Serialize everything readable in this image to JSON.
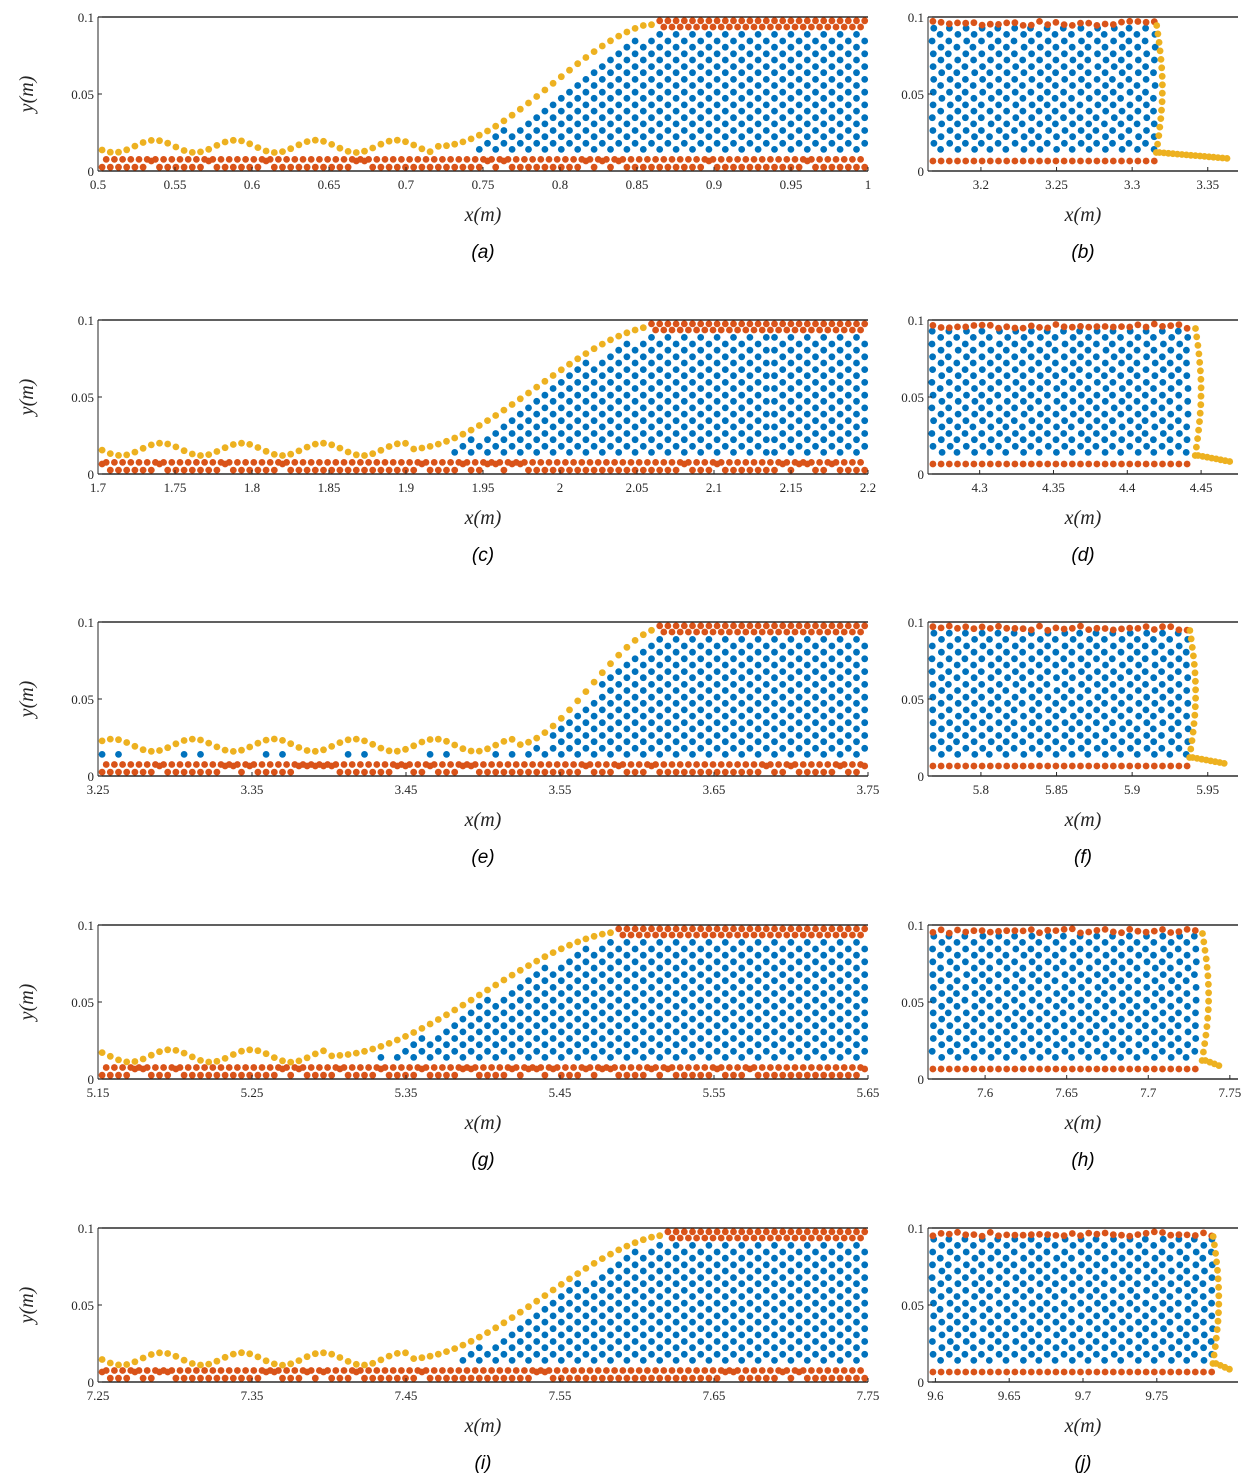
{
  "chart_data": [
    {
      "type": "scatter",
      "caption": "(a)",
      "xlabel": "x(m)",
      "ylabel": "y(m)",
      "xlim": [
        0.5,
        1.0
      ],
      "ylim": [
        0,
        0.1
      ],
      "xticks": [
        "0.5",
        "0.55",
        "0.6",
        "0.65",
        "0.7",
        "0.75",
        "0.8",
        "0.85",
        "0.9",
        "0.95",
        "1"
      ],
      "yticks": [
        "0",
        "0.05",
        "0.1"
      ],
      "front": {
        "kind": "slope",
        "tail_h": 0.016,
        "x0": 0.72,
        "x1": 0.87
      },
      "colors": {
        "fluid": "#0072BD",
        "wall": "#D95319",
        "free_surface": "#EDB120"
      }
    },
    {
      "type": "scatter",
      "caption": "(b)",
      "xlabel": "x(m)",
      "ylabel": "",
      "xlim": [
        3.165,
        3.37
      ],
      "ylim": [
        0,
        0.1
      ],
      "xticks": [
        "3.2",
        "3.25",
        "3.3",
        "3.35"
      ],
      "yticks": [
        "0",
        "0.05",
        "0.1"
      ],
      "front": {
        "kind": "wall",
        "front_x": 3.318,
        "tail_end": 3.365
      },
      "colors": {
        "fluid": "#0072BD",
        "wall": "#D95319",
        "free_surface": "#EDB120"
      }
    },
    {
      "type": "scatter",
      "caption": "(c)",
      "xlabel": "x(m)",
      "ylabel": "y(m)",
      "xlim": [
        1.7,
        2.2
      ],
      "ylim": [
        0,
        0.1
      ],
      "xticks": [
        "1.7",
        "1.75",
        "1.8",
        "1.85",
        "1.9",
        "1.95",
        "2",
        "2.05",
        "2.1",
        "2.15",
        "2.2"
      ],
      "yticks": [
        "0",
        "0.05",
        "0.1"
      ],
      "front": {
        "kind": "slope",
        "tail_h": 0.016,
        "x0": 1.9,
        "x1": 2.07
      },
      "colors": {
        "fluid": "#0072BD",
        "wall": "#D95319",
        "free_surface": "#EDB120"
      }
    },
    {
      "type": "scatter",
      "caption": "(d)",
      "xlabel": "x(m)",
      "ylabel": "",
      "xlim": [
        4.265,
        4.475
      ],
      "ylim": [
        0,
        0.1
      ],
      "xticks": [
        "4.3",
        "4.35",
        "4.4",
        "4.45"
      ],
      "yticks": [
        "0",
        "0.05",
        "0.1"
      ],
      "front": {
        "kind": "wall",
        "front_x": 4.448,
        "tail_end": 4.47
      },
      "colors": {
        "fluid": "#0072BD",
        "wall": "#D95319",
        "free_surface": "#EDB120"
      }
    },
    {
      "type": "scatter",
      "caption": "(e)",
      "xlabel": "x(m)",
      "ylabel": "y(m)",
      "xlim": [
        3.25,
        3.75
      ],
      "ylim": [
        0,
        0.1
      ],
      "xticks": [
        "3.25",
        "3.35",
        "3.45",
        "3.55",
        "3.65",
        "3.75"
      ],
      "yticks": [
        "0",
        "0.05",
        "0.1"
      ],
      "front": {
        "kind": "slope",
        "tail_h": 0.02,
        "x0": 3.52,
        "x1": 3.62
      },
      "colors": {
        "fluid": "#0072BD",
        "wall": "#D95319",
        "free_surface": "#EDB120"
      }
    },
    {
      "type": "scatter",
      "caption": "(f)",
      "xlabel": "x(m)",
      "ylabel": "",
      "xlim": [
        5.765,
        5.97
      ],
      "ylim": [
        0,
        0.1
      ],
      "xticks": [
        "5.8",
        "5.85",
        "5.9",
        "5.95"
      ],
      "yticks": [
        "0",
        "0.05",
        "0.1"
      ],
      "front": {
        "kind": "wall",
        "front_x": 5.94,
        "tail_end": 5.962
      },
      "colors": {
        "fluid": "#0072BD",
        "wall": "#D95319",
        "free_surface": "#EDB120"
      }
    },
    {
      "type": "scatter",
      "caption": "(g)",
      "xlabel": "x(m)",
      "ylabel": "y(m)",
      "xlim": [
        5.15,
        5.65
      ],
      "ylim": [
        0,
        0.1
      ],
      "xticks": [
        "5.15",
        "5.25",
        "5.35",
        "5.45",
        "5.55",
        "5.65"
      ],
      "yticks": [
        "0",
        "0.05",
        "0.1"
      ],
      "front": {
        "kind": "slope",
        "tail_h": 0.015,
        "x0": 5.3,
        "x1": 5.5
      },
      "colors": {
        "fluid": "#0072BD",
        "wall": "#D95319",
        "free_surface": "#EDB120"
      }
    },
    {
      "type": "scatter",
      "caption": "(h)",
      "xlabel": "x(m)",
      "ylabel": "",
      "xlim": [
        7.565,
        7.755
      ],
      "ylim": [
        0,
        0.1
      ],
      "xticks": [
        "7.6",
        "7.65",
        "7.7",
        "7.75"
      ],
      "yticks": [
        "0",
        "0.05",
        "0.1"
      ],
      "front": {
        "kind": "wall",
        "front_x": 7.735,
        "tail_end": 7.745
      },
      "colors": {
        "fluid": "#0072BD",
        "wall": "#D95319",
        "free_surface": "#EDB120"
      }
    },
    {
      "type": "scatter",
      "caption": "(i)",
      "xlabel": "x(m)",
      "ylabel": "y(m)",
      "xlim": [
        7.25,
        7.75
      ],
      "ylim": [
        0,
        0.1
      ],
      "xticks": [
        "7.25",
        "7.35",
        "7.45",
        "7.55",
        "7.65",
        "7.75"
      ],
      "yticks": [
        "0",
        "0.05",
        "0.1"
      ],
      "front": {
        "kind": "slope",
        "tail_h": 0.015,
        "x0": 7.45,
        "x1": 7.63
      },
      "colors": {
        "fluid": "#0072BD",
        "wall": "#D95319",
        "free_surface": "#EDB120"
      }
    },
    {
      "type": "scatter",
      "caption": "(j)",
      "xlabel": "x(m)",
      "ylabel": "",
      "xlim": [
        9.595,
        9.805
      ],
      "ylim": [
        0,
        0.1
      ],
      "xticks": [
        "9.6",
        "9.65",
        "9.7",
        "9.75"
      ],
      "yticks": [
        "0",
        "0.05",
        "0.1"
      ],
      "front": {
        "kind": "wall",
        "front_x": 9.79,
        "tail_end": 9.8
      },
      "colors": {
        "fluid": "#0072BD",
        "wall": "#D95319",
        "free_surface": "#EDB120"
      }
    }
  ]
}
